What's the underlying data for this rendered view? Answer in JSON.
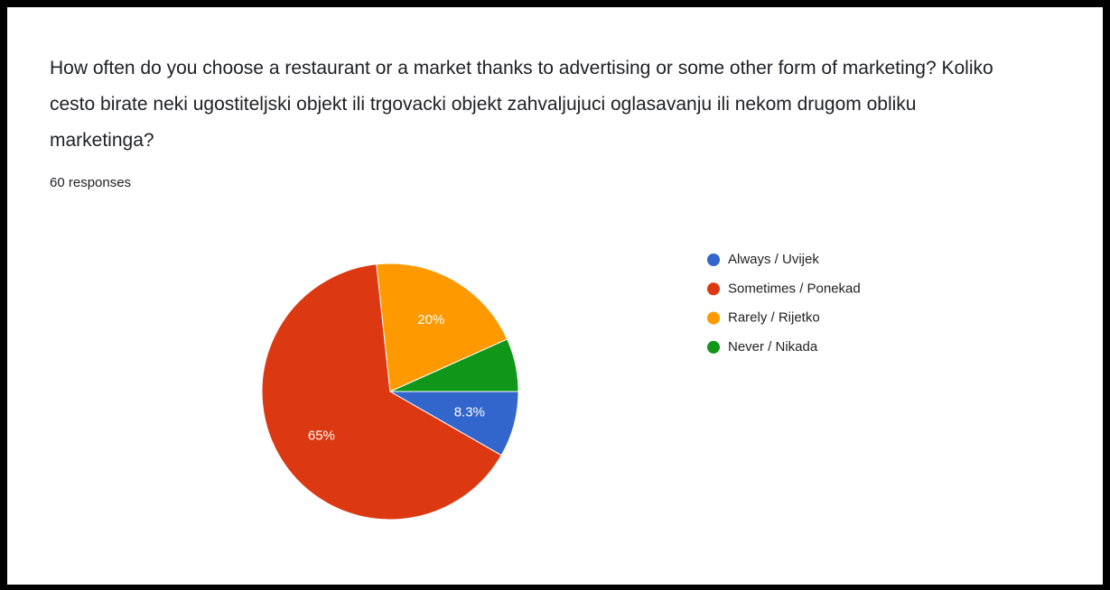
{
  "chart_data": {
    "type": "pie",
    "title": "How often do you choose a restaurant or a market thanks to advertising or some other form of marketing? Koliko cesto birate neki ugostiteljski objekt ili trgovacki objekt zahvaljujuci oglasavanju ili nekom drugom obliku marketinga?",
    "subtitle": "60 responses",
    "categories": [
      "Always / Uvijek",
      "Sometimes / Ponekad",
      "Rarely / Rijetko",
      "Never / Nikada"
    ],
    "values": [
      8.3,
      65,
      20,
      6.7
    ],
    "value_labels": [
      "8.3%",
      "65%",
      "20%",
      null
    ],
    "colors": [
      "#3366cc",
      "#dc3912",
      "#ff9900",
      "#109618"
    ],
    "legend": "right"
  }
}
